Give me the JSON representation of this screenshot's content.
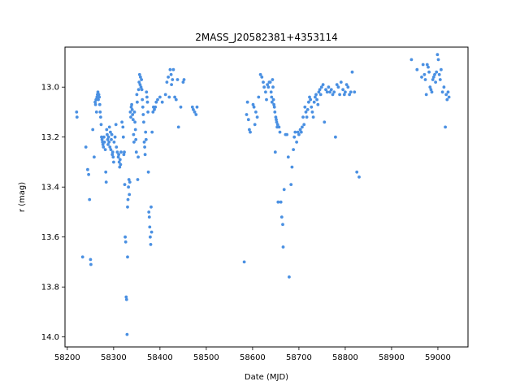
{
  "chart_data": {
    "type": "scatter",
    "title": "2MASS_J20582381+4353114",
    "xlabel": "Date (MJD)",
    "ylabel": "r (mag)",
    "xlim": [
      58195,
      59065
    ],
    "ylim": [
      14.04,
      12.84
    ],
    "y_inverted": true,
    "grid": false,
    "point_color": "#4a90e2",
    "x_ticks": [
      58200,
      58300,
      58400,
      58500,
      58600,
      58700,
      58800,
      58900,
      59000
    ],
    "y_ticks": [
      13.0,
      13.2,
      13.4,
      13.6,
      13.8,
      14.0
    ],
    "x_tick_labels": [
      "58200",
      "58300",
      "58400",
      "58500",
      "58600",
      "58700",
      "58800",
      "58900",
      "59000"
    ],
    "y_tick_labels": [
      "13.0",
      "13.2",
      "13.4",
      "13.6",
      "13.8",
      "14.0"
    ],
    "points": [
      [
        58220,
        13.1
      ],
      [
        58221,
        13.12
      ],
      [
        58233,
        13.68
      ],
      [
        58240,
        13.24
      ],
      [
        58244,
        13.33
      ],
      [
        58246,
        13.35
      ],
      [
        58248,
        13.45
      ],
      [
        58250,
        13.69
      ],
      [
        58251,
        13.71
      ],
      [
        58255,
        13.17
      ],
      [
        58258,
        13.28
      ],
      [
        58260,
        13.06
      ],
      [
        58261,
        13.07
      ],
      [
        58262,
        13.05
      ],
      [
        58263,
        13.1
      ],
      [
        58264,
        13.04
      ],
      [
        58265,
        13.03
      ],
      [
        58266,
        13.02
      ],
      [
        58267,
        13.05
      ],
      [
        58268,
        13.03
      ],
      [
        58269,
        13.04
      ],
      [
        58270,
        13.07
      ],
      [
        58271,
        13.1
      ],
      [
        58272,
        13.12
      ],
      [
        58273,
        13.15
      ],
      [
        58274,
        13.2
      ],
      [
        58275,
        13.21
      ],
      [
        58276,
        13.22
      ],
      [
        58277,
        13.23
      ],
      [
        58278,
        13.24
      ],
      [
        58279,
        13.2
      ],
      [
        58280,
        13.22
      ],
      [
        58282,
        13.25
      ],
      [
        58283,
        13.34
      ],
      [
        58284,
        13.38
      ],
      [
        58285,
        13.17
      ],
      [
        58286,
        13.19
      ],
      [
        58287,
        13.21
      ],
      [
        58288,
        13.23
      ],
      [
        58289,
        13.2
      ],
      [
        58290,
        13.22
      ],
      [
        58291,
        13.16
      ],
      [
        58292,
        13.24
      ],
      [
        58293,
        13.18
      ],
      [
        58294,
        13.25
      ],
      [
        58295,
        13.21
      ],
      [
        58296,
        13.19
      ],
      [
        58297,
        13.27
      ],
      [
        58298,
        13.26
      ],
      [
        58299,
        13.28
      ],
      [
        58300,
        13.3
      ],
      [
        58301,
        13.22
      ],
      [
        58303,
        13.2
      ],
      [
        58305,
        13.15
      ],
      [
        58306,
        13.24
      ],
      [
        58308,
        13.26
      ],
      [
        58310,
        13.28
      ],
      [
        58311,
        13.27
      ],
      [
        58312,
        13.3
      ],
      [
        58313,
        13.32
      ],
      [
        58314,
        13.29
      ],
      [
        58315,
        13.31
      ],
      [
        58316,
        13.26
      ],
      [
        58318,
        13.14
      ],
      [
        58320,
        13.16
      ],
      [
        58321,
        13.2
      ],
      [
        58322,
        13.27
      ],
      [
        58323,
        13.26
      ],
      [
        58324,
        13.39
      ],
      [
        58325,
        13.6
      ],
      [
        58326,
        13.62
      ],
      [
        58327,
        13.84
      ],
      [
        58328,
        13.85
      ],
      [
        58329,
        13.99
      ],
      [
        58330,
        13.68
      ],
      [
        58330,
        13.48
      ],
      [
        58331,
        13.45
      ],
      [
        58332,
        13.4
      ],
      [
        58333,
        13.37
      ],
      [
        58334,
        13.43
      ],
      [
        58335,
        13.38
      ],
      [
        58336,
        13.1
      ],
      [
        58337,
        13.12
      ],
      [
        58338,
        13.08
      ],
      [
        58339,
        13.07
      ],
      [
        58340,
        13.09
      ],
      [
        58341,
        13.11
      ],
      [
        58342,
        13.13
      ],
      [
        58343,
        13.19
      ],
      [
        58344,
        13.22
      ],
      [
        58345,
        13.1
      ],
      [
        58346,
        13.14
      ],
      [
        58347,
        13.17
      ],
      [
        58348,
        13.21
      ],
      [
        58349,
        13.26
      ],
      [
        58350,
        13.03
      ],
      [
        58351,
        13.06
      ],
      [
        58352,
        13.37
      ],
      [
        58353,
        13.28
      ],
      [
        58354,
        13.01
      ],
      [
        58355,
        12.98
      ],
      [
        58356,
        12.95
      ],
      [
        58357,
        12.99
      ],
      [
        58358,
        12.96
      ],
      [
        58359,
        13.0
      ],
      [
        58360,
        12.97
      ],
      [
        58361,
        13.01
      ],
      [
        58362,
        13.05
      ],
      [
        58363,
        13.08
      ],
      [
        58364,
        13.11
      ],
      [
        58365,
        13.14
      ],
      [
        58366,
        13.22
      ],
      [
        58367,
        13.24
      ],
      [
        58368,
        13.27
      ],
      [
        58369,
        13.18
      ],
      [
        58370,
        13.21
      ],
      [
        58371,
        13.02
      ],
      [
        58372,
        13.04
      ],
      [
        58373,
        13.06
      ],
      [
        58374,
        13.1
      ],
      [
        58375,
        13.34
      ],
      [
        58376,
        13.5
      ],
      [
        58377,
        13.52
      ],
      [
        58378,
        13.56
      ],
      [
        58379,
        13.6
      ],
      [
        58380,
        13.63
      ],
      [
        58381,
        13.48
      ],
      [
        58382,
        13.58
      ],
      [
        58383,
        13.18
      ],
      [
        58385,
        13.1
      ],
      [
        58386,
        13.08
      ],
      [
        58388,
        13.09
      ],
      [
        58390,
        13.08
      ],
      [
        58392,
        13.06
      ],
      [
        58395,
        13.05
      ],
      [
        58400,
        13.04
      ],
      [
        58405,
        13.06
      ],
      [
        58412,
        13.03
      ],
      [
        58415,
        12.98
      ],
      [
        58418,
        12.96
      ],
      [
        58420,
        13.04
      ],
      [
        58422,
        12.93
      ],
      [
        58424,
        12.95
      ],
      [
        58425,
        12.99
      ],
      [
        58427,
        12.97
      ],
      [
        58429,
        12.93
      ],
      [
        58432,
        13.04
      ],
      [
        58435,
        13.05
      ],
      [
        58438,
        12.97
      ],
      [
        58440,
        13.16
      ],
      [
        58445,
        13.08
      ],
      [
        58450,
        12.98
      ],
      [
        58452,
        12.97
      ],
      [
        58470,
        13.08
      ],
      [
        58472,
        13.09
      ],
      [
        58475,
        13.1
      ],
      [
        58478,
        13.11
      ],
      [
        58480,
        13.08
      ],
      [
        58582,
        13.7
      ],
      [
        58587,
        13.11
      ],
      [
        58589,
        13.06
      ],
      [
        58591,
        13.13
      ],
      [
        58593,
        13.17
      ],
      [
        58595,
        13.18
      ],
      [
        58601,
        13.07
      ],
      [
        58603,
        13.08
      ],
      [
        58605,
        13.15
      ],
      [
        58607,
        13.1
      ],
      [
        58610,
        13.12
      ],
      [
        58613,
        13.04
      ],
      [
        58617,
        12.95
      ],
      [
        58620,
        12.96
      ],
      [
        58623,
        12.98
      ],
      [
        58625,
        13.0
      ],
      [
        58628,
        13.02
      ],
      [
        58630,
        13.05
      ],
      [
        58632,
        12.99
      ],
      [
        58634,
        13.0
      ],
      [
        58636,
        12.98
      ],
      [
        58638,
        12.98
      ],
      [
        58640,
        13.02
      ],
      [
        58641,
        13.04
      ],
      [
        58642,
        13.06
      ],
      [
        58643,
        12.97
      ],
      [
        58644,
        13.0
      ],
      [
        58645,
        13.05
      ],
      [
        58646,
        13.07
      ],
      [
        58647,
        13.08
      ],
      [
        58648,
        13.1
      ],
      [
        58649,
        13.26
      ],
      [
        58650,
        13.12
      ],
      [
        58651,
        13.13
      ],
      [
        58652,
        13.14
      ],
      [
        58653,
        13.16
      ],
      [
        58654,
        13.15
      ],
      [
        58655,
        13.46
      ],
      [
        58657,
        13.16
      ],
      [
        58659,
        13.18
      ],
      [
        58661,
        13.46
      ],
      [
        58663,
        13.52
      ],
      [
        58665,
        13.55
      ],
      [
        58666,
        13.64
      ],
      [
        58668,
        13.41
      ],
      [
        58671,
        13.19
      ],
      [
        58674,
        13.19
      ],
      [
        58677,
        13.28
      ],
      [
        58679,
        13.76
      ],
      [
        58683,
        13.39
      ],
      [
        58685,
        13.32
      ],
      [
        58688,
        13.25
      ],
      [
        58690,
        13.2
      ],
      [
        58692,
        13.18
      ],
      [
        58695,
        13.22
      ],
      [
        58698,
        13.18
      ],
      [
        58700,
        13.19
      ],
      [
        58703,
        13.17
      ],
      [
        58705,
        13.18
      ],
      [
        58707,
        13.16
      ],
      [
        58709,
        13.12
      ],
      [
        58711,
        13.15
      ],
      [
        58713,
        13.08
      ],
      [
        58715,
        13.1
      ],
      [
        58717,
        13.12
      ],
      [
        58719,
        13.09
      ],
      [
        58721,
        13.06
      ],
      [
        58723,
        13.04
      ],
      [
        58725,
        13.05
      ],
      [
        58727,
        13.08
      ],
      [
        58729,
        13.1
      ],
      [
        58731,
        13.12
      ],
      [
        58733,
        13.06
      ],
      [
        58735,
        13.04
      ],
      [
        58737,
        13.03
      ],
      [
        58739,
        13.05
      ],
      [
        58741,
        13.07
      ],
      [
        58743,
        13.02
      ],
      [
        58745,
        13.01
      ],
      [
        58747,
        13.03
      ],
      [
        58749,
        13.0
      ],
      [
        58752,
        12.99
      ],
      [
        58755,
        13.14
      ],
      [
        58758,
        13.01
      ],
      [
        58761,
        13.02
      ],
      [
        58764,
        13.0
      ],
      [
        58767,
        13.02
      ],
      [
        58770,
        13.01
      ],
      [
        58773,
        13.03
      ],
      [
        58776,
        13.02
      ],
      [
        58779,
        13.2
      ],
      [
        58782,
        12.99
      ],
      [
        58785,
        13.0
      ],
      [
        58788,
        13.03
      ],
      [
        58791,
        12.98
      ],
      [
        58795,
        13.01
      ],
      [
        58798,
        13.03
      ],
      [
        58800,
        13.02
      ],
      [
        58803,
        12.99
      ],
      [
        58806,
        13.0
      ],
      [
        58809,
        13.03
      ],
      [
        58812,
        13.02
      ],
      [
        58815,
        12.94
      ],
      [
        58820,
        13.02
      ],
      [
        58825,
        13.34
      ],
      [
        58830,
        13.36
      ],
      [
        58943,
        12.89
      ],
      [
        58955,
        12.93
      ],
      [
        58965,
        12.96
      ],
      [
        58968,
        12.91
      ],
      [
        58971,
        12.95
      ],
      [
        58973,
        12.97
      ],
      [
        58975,
        13.03
      ],
      [
        58977,
        12.91
      ],
      [
        58979,
        12.92
      ],
      [
        58981,
        12.94
      ],
      [
        58983,
        13.0
      ],
      [
        58985,
        13.01
      ],
      [
        58987,
        13.02
      ],
      [
        58989,
        12.97
      ],
      [
        58991,
        12.96
      ],
      [
        58993,
        12.95
      ],
      [
        58995,
        12.98
      ],
      [
        58997,
        12.94
      ],
      [
        58999,
        12.87
      ],
      [
        59001,
        12.89
      ],
      [
        59003,
        12.95
      ],
      [
        59005,
        12.97
      ],
      [
        59007,
        12.93
      ],
      [
        59010,
        13.02
      ],
      [
        59013,
        13.0
      ],
      [
        59016,
        13.16
      ],
      [
        59018,
        13.03
      ],
      [
        59020,
        13.05
      ],
      [
        59022,
        13.02
      ],
      [
        59024,
        13.04
      ]
    ]
  }
}
